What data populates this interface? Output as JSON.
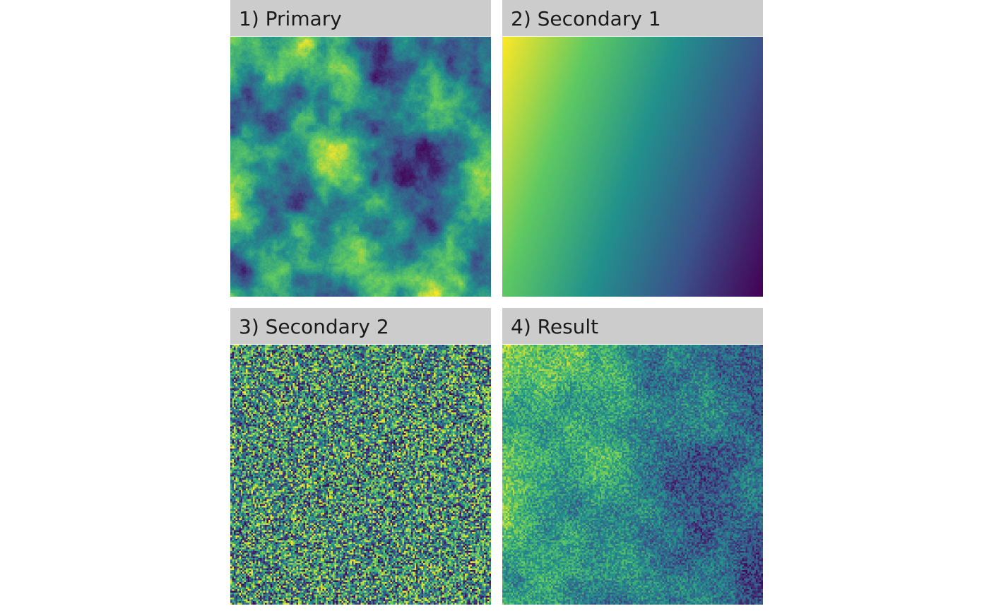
{
  "panels": [
    {
      "label": "1) Primary",
      "pattern": "fractal-noise"
    },
    {
      "label": "2) Secondary 1",
      "pattern": "diagonal-gradient"
    },
    {
      "label": "3) Secondary 2",
      "pattern": "white-noise"
    },
    {
      "label": "4) Result",
      "pattern": "weighted-combination"
    }
  ],
  "colormap": [
    "#440154",
    "#3b528b",
    "#21918c",
    "#5ec962",
    "#fde725"
  ]
}
